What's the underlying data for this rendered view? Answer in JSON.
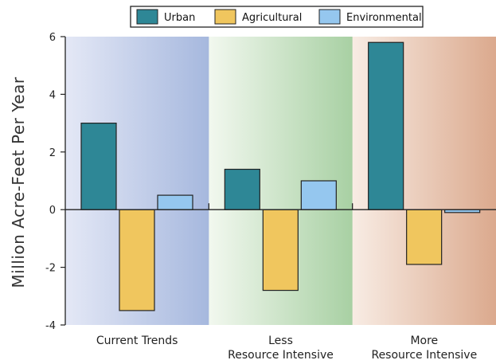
{
  "chart_data": {
    "type": "bar",
    "ylabel": "Million Acre-Feet Per Year",
    "ylim": [
      -4,
      6
    ],
    "yticks": [
      6,
      4,
      2,
      0,
      -2,
      -4
    ],
    "grid": false,
    "legend_position": "top-center",
    "categories": [
      [
        "Current Trends"
      ],
      [
        "Less",
        "Resource Intensive"
      ],
      [
        "More",
        "Resource Intensive"
      ]
    ],
    "category_backgrounds": [
      {
        "from": "#e4e8f6",
        "to": "#a6b8de"
      },
      {
        "from": "#f2f8ef",
        "to": "#a8d0a3"
      },
      {
        "from": "#f8ece4",
        "to": "#dba98d"
      }
    ],
    "series": [
      {
        "name": "Urban",
        "color": "#2e8796",
        "values": [
          3.0,
          1.4,
          5.8
        ]
      },
      {
        "name": "Agricultural",
        "color": "#f0c65e",
        "values": [
          -3.5,
          -2.8,
          -1.9
        ]
      },
      {
        "name": "Environmental",
        "color": "#95c7ef",
        "values": [
          0.5,
          1.0,
          -0.1
        ]
      }
    ]
  }
}
